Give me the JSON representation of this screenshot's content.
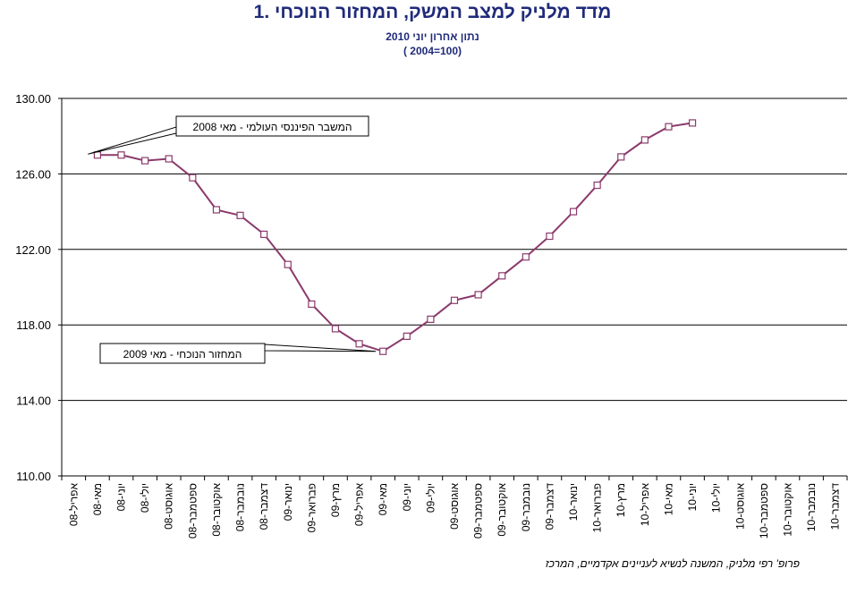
{
  "title": "1.  מדד מלניק למצב המשק, המחזור הנוכחי",
  "subtitle_line1": "נתון אחרון יוני 2010",
  "subtitle_line2": "( 2004=100)",
  "footer": "פרופ' רפי מלניק, המשנה לנשיא לעניינים אקדמיים, המרכז",
  "colors": {
    "title": "#1f2a7a",
    "series": "#8b3a6b",
    "grid": "#000000"
  },
  "chart_data": {
    "type": "line",
    "ylim": [
      110,
      130
    ],
    "yticks": [
      "110.00",
      "114.00",
      "118.00",
      "122.00",
      "126.00",
      "130.00"
    ],
    "grid": true,
    "categories": [
      "אפריל-08",
      "מאי-08",
      "יוני-08",
      "יולי-08",
      "אוגוסט-08",
      "ספטמבר-08",
      "אוקטובר-08",
      "נובמבר-08",
      "דצמבר-08",
      "ינואר-09",
      "פברואר-09",
      "מרץ-09",
      "אפריל-09",
      "מאי-09",
      "יוני-09",
      "יולי-09",
      "אוגוסט-09",
      "ספטמבר-09",
      "אוקטובר-09",
      "נובמבר-09",
      "דצמבר-09",
      "ינואר-10",
      "פברואר-10",
      "מרץ-10",
      "אפריל-10",
      "מאי-10",
      "יוני-10",
      "יולי-10",
      "אוגוסט-10",
      "ספטמבר-10",
      "אוקטובר-10",
      "נובמבר-10",
      "דצמבר-10"
    ],
    "series": [
      {
        "values": [
          null,
          127.0,
          127.0,
          126.7,
          126.8,
          125.8,
          124.1,
          123.8,
          122.8,
          121.2,
          119.1,
          117.8,
          117.0,
          116.6,
          117.4,
          118.3,
          119.3,
          119.6,
          120.6,
          121.6,
          122.7,
          124.0,
          125.4,
          126.9,
          127.8,
          128.5,
          128.7,
          null,
          null,
          null,
          null,
          null,
          null
        ]
      }
    ],
    "annotations": [
      {
        "text": "המשבר הפיננסי העולמי  - מאי 2008",
        "target_category": "מאי-08"
      },
      {
        "text": "המחזור הנוכחי  - מאי 2009",
        "target_category": "מאי-09"
      }
    ]
  }
}
